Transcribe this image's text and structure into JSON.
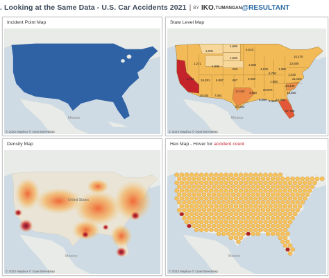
{
  "header": {
    "title": ". Looking at the Same Data - U.S. Car Accidents 2021",
    "separator": "|",
    "by": "BY",
    "author": "IKO.",
    "author_small": "TUMANGAN",
    "brand": "@RESULTANT"
  },
  "panels": {
    "incident": {
      "title": "Incident Point Map"
    },
    "state": {
      "title": "State Level Map"
    },
    "density": {
      "title": "Density Map"
    },
    "hex": {
      "title_prefix": "Hex Map - Hover for ",
      "title_accent": "accident count"
    }
  },
  "map_labels": {
    "attribution": "© 2023 Mapbox © OpenStreetMap",
    "mexico": "Mexico",
    "united_states": "United States"
  },
  "state_values": [
    {
      "id": "mt",
      "value": "1,005"
    },
    {
      "id": "nd",
      "value": "1,696"
    },
    {
      "id": "mn",
      "value": "5,015"
    },
    {
      "id": "sd",
      "value": "1,696"
    },
    {
      "id": "wy",
      "value": "1,005"
    },
    {
      "id": "ne",
      "value": "603"
    },
    {
      "id": "ia",
      "value": "1,068"
    },
    {
      "id": "id",
      "value": "1,271"
    },
    {
      "id": "nv",
      "value": "2,791"
    },
    {
      "id": "ut",
      "value": "16,281"
    },
    {
      "id": "co",
      "value": "6,987"
    },
    {
      "id": "ks",
      "value": "867"
    },
    {
      "id": "mo",
      "value": "5,900"
    },
    {
      "id": "il",
      "value": "4,100"
    },
    {
      "id": "az",
      "value": "15,044"
    },
    {
      "id": "nm",
      "value": "7,081"
    },
    {
      "id": "ok",
      "value": "17,043"
    },
    {
      "id": "tx",
      "value": "82,862"
    },
    {
      "id": "ar",
      "value": "4,800"
    },
    {
      "id": "ms",
      "value": "6,080"
    },
    {
      "id": "al",
      "value": "2,440"
    },
    {
      "id": "tn",
      "value": "20,870"
    },
    {
      "id": "ky",
      "value": "1,580"
    },
    {
      "id": "in",
      "value": "6,780"
    },
    {
      "id": "oh",
      "value": "1,380"
    },
    {
      "id": "wv",
      "value": "1,036"
    },
    {
      "id": "pa",
      "value": "13,580"
    },
    {
      "id": "nc",
      "value": "34,430"
    },
    {
      "id": "sc",
      "value": "46,550"
    },
    {
      "id": "va",
      "value": "21,020"
    },
    {
      "id": "ny",
      "value": "10,270"
    },
    {
      "id": "ga",
      "value": "12,080"
    },
    {
      "id": "fl",
      "value": "57,730"
    }
  ],
  "colors": {
    "point": "#2f62a5",
    "land": "#e9ece9",
    "water": "#cfdbe4",
    "state_low": "#f5c86a",
    "state_high": "#c5232c",
    "hex_fill": "#f6c35a",
    "hex_hot": "#b0212b"
  }
}
